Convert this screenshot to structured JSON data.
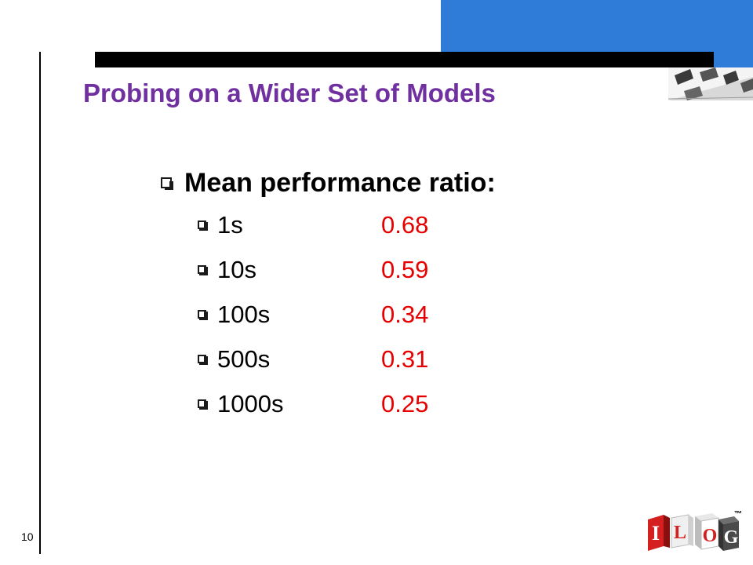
{
  "slide": {
    "title": "Probing on a Wider Set of Models",
    "main_bullet": "Mean performance ratio:",
    "items": [
      {
        "label": "1s",
        "value": "0.68"
      },
      {
        "label": "10s",
        "value": "0.59"
      },
      {
        "label": "100s",
        "value": "0.34"
      },
      {
        "label": "500s",
        "value": "0.31"
      },
      {
        "label": "1000s",
        "value": "0.25"
      }
    ],
    "page_number": "10"
  },
  "logo": {
    "letters": [
      "I",
      "L",
      "O",
      "G"
    ],
    "trademark": "™"
  },
  "colors": {
    "title": "#7030a0",
    "value": "#e60000",
    "accent_blue": "#2f7bd8",
    "logo_red": "#d42020"
  },
  "icons": {
    "bullet": "hollow-square-bullet-icon"
  }
}
